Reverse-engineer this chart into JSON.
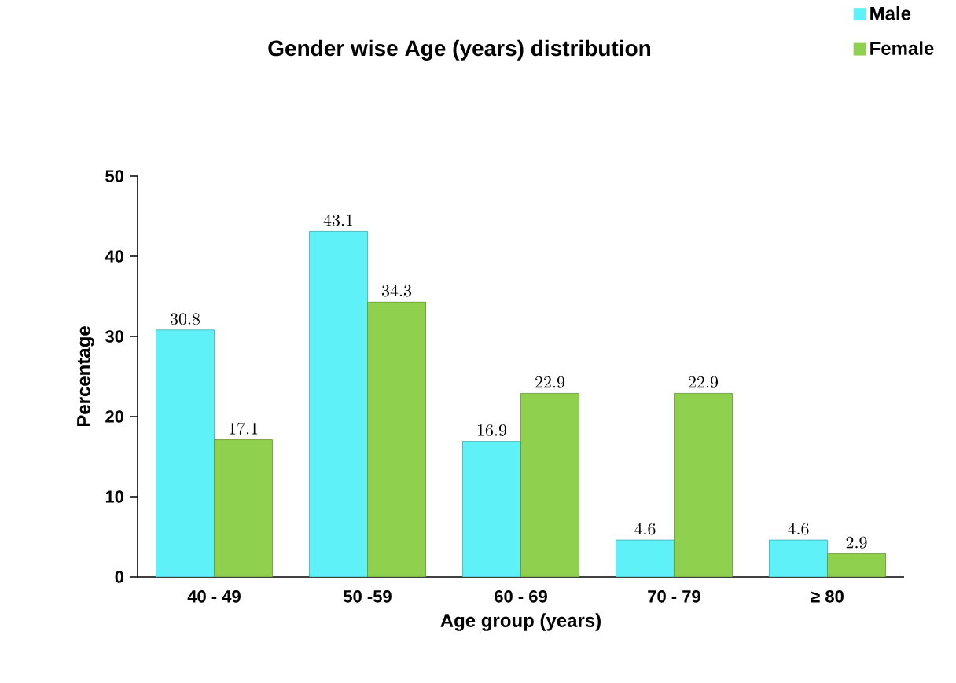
{
  "chart_data": {
    "type": "bar",
    "title": "Gender wise Age (years) distribution",
    "xlabel": "Age group (years)",
    "ylabel": "Percentage",
    "categories": [
      "40 - 49",
      "50 -59",
      "60 - 69",
      "70 - 79",
      "≥ 80"
    ],
    "series": [
      {
        "name": "Male",
        "color": "#5ef2f8",
        "values": [
          30.8,
          43.1,
          16.9,
          4.6,
          4.6
        ]
      },
      {
        "name": "Female",
        "color": "#8fd14f",
        "values": [
          17.1,
          34.3,
          22.9,
          22.9,
          2.9
        ]
      }
    ],
    "ylim": [
      0,
      50
    ],
    "yticks": [
      0,
      10,
      20,
      30,
      40,
      50
    ],
    "data_labels": true,
    "legend": "top right"
  }
}
